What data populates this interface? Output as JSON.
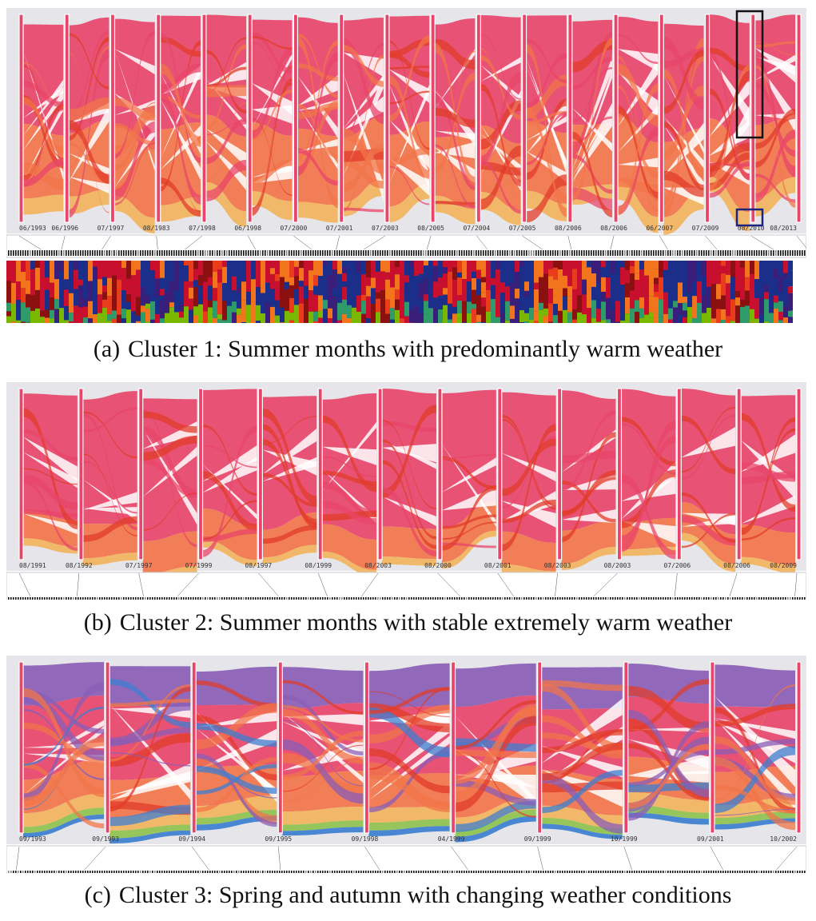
{
  "figure": {
    "panels": [
      {
        "id": "a",
        "caption_label": "(a)",
        "caption_text": "Cluster 1: Summer months with predominantly warm weather",
        "tick_labels": [
          "06/1993",
          "06/1996",
          "07/1997",
          "08/1983",
          "07/1998",
          "06/1998",
          "07/2000",
          "07/2001",
          "07/2003",
          "08/2005",
          "07/2004",
          "07/2005",
          "08/2006",
          "08/2006",
          "06/2007",
          "07/2009",
          "08/2010",
          "08/2013"
        ],
        "colors": {
          "primary": "#e8456a",
          "secondary": "#f2754a",
          "tertiary": "#f3b45e",
          "accent": "#9b63b9",
          "line": "#e23c2a"
        }
      },
      {
        "id": "b",
        "caption_label": "(b)",
        "caption_text": "Cluster 2: Summer months with stable extremely warm weather",
        "tick_labels": [
          "08/1991",
          "08/1992",
          "07/1997",
          "07/1999",
          "08/1997",
          "08/1999",
          "08/2003",
          "08/2000",
          "08/2001",
          "08/2003",
          "08/2003",
          "07/2006",
          "08/2006",
          "08/2009"
        ],
        "colors": {
          "primary": "#e8456a",
          "secondary": "#f2754a",
          "tertiary": "#f3b45e",
          "accent": "#9b63b9",
          "line": "#e23c2a"
        }
      },
      {
        "id": "c",
        "caption_label": "(c)",
        "caption_text": "Cluster 3: Spring and autumn with changing weather conditions",
        "tick_labels": [
          "09/1993",
          "09/1993",
          "09/1994",
          "09/1995",
          "09/1998",
          "04/1999",
          "09/1999",
          "10/1999",
          "09/2001",
          "10/2002"
        ],
        "colors": {
          "primary": "#e8456a",
          "secondary": "#f2754a",
          "tertiary": "#f3b45e",
          "accent": "#8a5db5",
          "green": "#8fc24e",
          "blue": "#3d7fd0",
          "line": "#e23c2a"
        }
      }
    ]
  }
}
